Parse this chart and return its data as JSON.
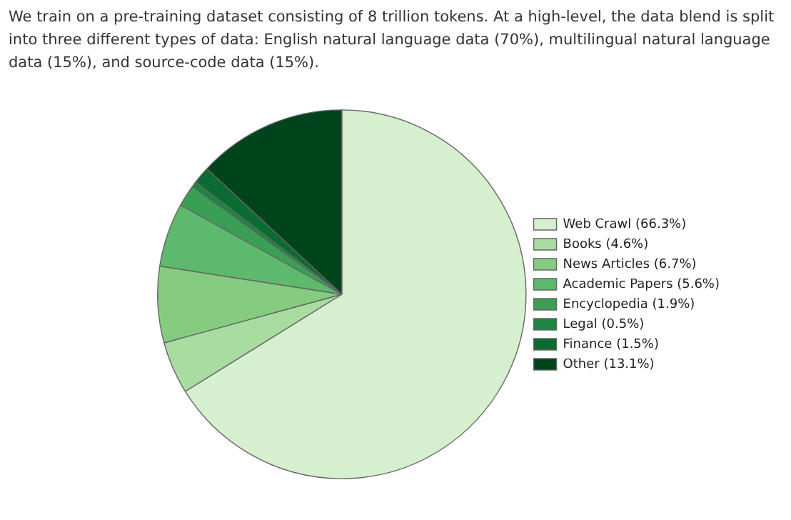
{
  "chart_data": {
    "type": "pie",
    "annotations": [
      "We train on a pre-training dataset consisting of 8 trillion tokens. At a high-level, the data blend is split into three different types of data: English natural language data (70%), multilingual natural language data (15%), and source-code data (15%)."
    ],
    "categories": [
      "Web Crawl (66.3%)",
      "Books (4.6%)",
      "News Articles (6.7%)",
      "Academic Papers (5.6%)",
      "Encyclopedia (1.9%)",
      "Legal (0.5%)",
      "Finance (1.5%)",
      "Other (13.1%)"
    ],
    "values": [
      66.3,
      4.6,
      6.7,
      5.6,
      1.9,
      0.5,
      1.5,
      13.1
    ],
    "colors": [
      "#d5efcf",
      "#a8dca0",
      "#86cc80",
      "#5db96b",
      "#3a9f55",
      "#1c8540",
      "#0a6c30",
      "#00441b"
    ],
    "legend": "right"
  }
}
